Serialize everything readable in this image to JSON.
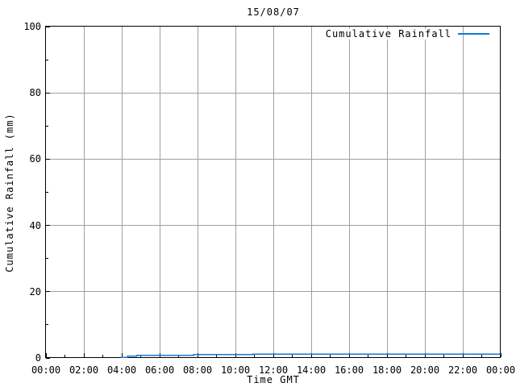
{
  "chart_data": {
    "type": "line",
    "title": "15/08/07",
    "xlabel": "Time GMT",
    "ylabel": "Cumulative Rainfall (mm)",
    "x_unit": "hours",
    "xlim": [
      0,
      24
    ],
    "ylim": [
      0,
      100
    ],
    "x_tick_hours": [
      0,
      2,
      4,
      6,
      8,
      10,
      12,
      14,
      16,
      18,
      20,
      22,
      24
    ],
    "x_tick_labels": [
      "00:00",
      "02:00",
      "04:00",
      "06:00",
      "08:00",
      "10:00",
      "12:00",
      "14:00",
      "16:00",
      "18:00",
      "20:00",
      "22:00",
      "00:00"
    ],
    "y_tick_values": [
      0,
      20,
      40,
      60,
      80,
      100
    ],
    "y_tick_labels": [
      "0",
      "20",
      "40",
      "60",
      "80",
      "100"
    ],
    "minor_x_step_hours": 1,
    "minor_y_step": 10,
    "grid": true,
    "legend": {
      "label": "Cumulative Rainfall",
      "position": "top-right-inside"
    },
    "series": [
      {
        "name": "Cumulative Rainfall",
        "color": "#1778d2",
        "interpolation": "step-after",
        "points_hour_mm": [
          [
            3.95,
            0.2
          ],
          [
            4.3,
            0.5
          ],
          [
            4.8,
            0.8
          ],
          [
            7.8,
            1.0
          ],
          [
            10.9,
            1.2
          ],
          [
            24.0,
            1.2
          ]
        ]
      }
    ],
    "colors": {
      "background": "#ffffff",
      "axis": "#000000",
      "grid": "#a0a0a0",
      "text": "#000000"
    }
  }
}
